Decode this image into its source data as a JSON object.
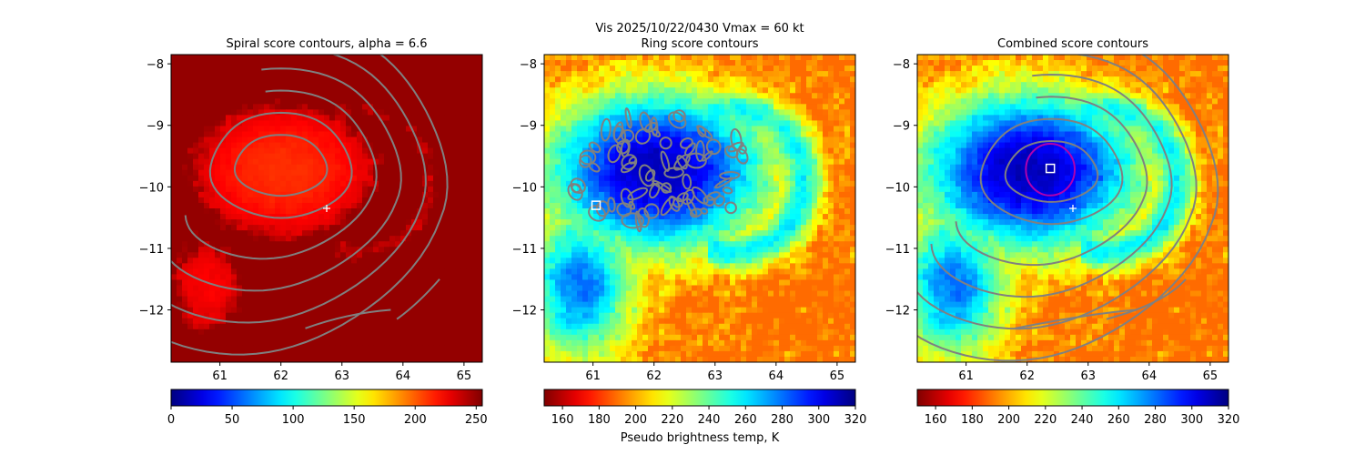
{
  "figure": {
    "suptitle": "Vis  2025/10/22/0430    Vmax = 60 kt",
    "colorbar_label": "Pseudo brightness temp, K"
  },
  "chart_data": [
    {
      "type": "heatmap",
      "title": "Spiral score contours, alpha =  6.6",
      "colormap": "jet",
      "field": "spiral score",
      "xlim": [
        60.2,
        65.3
      ],
      "ylim": [
        -12.85,
        -7.85
      ],
      "xticks": [
        "61",
        "62",
        "63",
        "64",
        "65"
      ],
      "yticks": [
        "−8",
        "−9",
        "−10",
        "−11",
        "−12"
      ],
      "colorbar": {
        "min": 0,
        "max": 255,
        "ticks": [
          "0",
          "50",
          "100",
          "150",
          "200",
          "250"
        ]
      },
      "field_features": {
        "low_value_core": {
          "lon": 62.0,
          "lat": -9.8
        },
        "high_value_band_east": {
          "lon_range": [
            64.0,
            65.3
          ]
        }
      },
      "contour_color": "#808080",
      "marker_plus": {
        "lon": 62.75,
        "lat": -10.35,
        "color": "#ffffff"
      }
    },
    {
      "type": "heatmap",
      "title": "Ring score contours",
      "colormap": "jet_r",
      "field": "pseudo brightness temperature",
      "xlim": [
        60.2,
        65.3
      ],
      "ylim": [
        -12.85,
        -7.85
      ],
      "xticks": [
        "61",
        "62",
        "63",
        "64",
        "65"
      ],
      "yticks": [
        "−8",
        "−9",
        "−10",
        "−11",
        "−12"
      ],
      "colorbar": {
        "min": 150,
        "max": 320,
        "ticks": [
          "160",
          "180",
          "200",
          "220",
          "240",
          "260",
          "280",
          "300",
          "320"
        ]
      },
      "ring_contour_region": {
        "lon_range": [
          60.6,
          63.6
        ],
        "lat_range": [
          -10.7,
          -8.8
        ]
      },
      "contour_color": "#808080",
      "marker_square": {
        "lon": 61.05,
        "lat": -10.3,
        "color": "#ffffff"
      }
    },
    {
      "type": "heatmap",
      "title": "Combined score contours",
      "colormap": "jet_r",
      "field": "pseudo brightness temperature",
      "xlim": [
        60.2,
        65.3
      ],
      "ylim": [
        -12.85,
        -7.85
      ],
      "xticks": [
        "61",
        "62",
        "63",
        "64",
        "65"
      ],
      "yticks": [
        "−8",
        "−9",
        "−10",
        "−11",
        "−12"
      ],
      "colorbar": {
        "min": 150,
        "max": 320,
        "ticks": [
          "160",
          "180",
          "200",
          "220",
          "240",
          "260",
          "280",
          "300",
          "320"
        ]
      },
      "contour_color": "#808080",
      "ring_circle": {
        "lon": 62.38,
        "lat": -9.72,
        "radius_deg": 0.4,
        "color": "#b000b0"
      },
      "marker_square": {
        "lon": 62.38,
        "lat": -9.7,
        "color": "#ffffff"
      },
      "marker_plus": {
        "lon": 62.75,
        "lat": -10.35,
        "color": "#ffffff"
      }
    }
  ]
}
